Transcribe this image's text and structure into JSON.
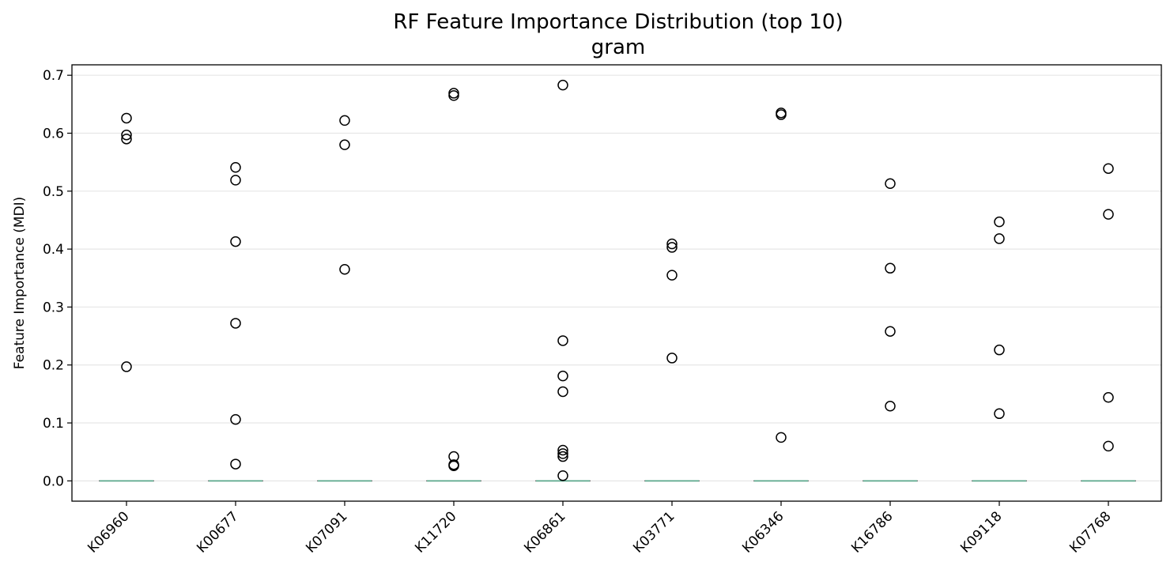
{
  "chart_data": {
    "type": "box",
    "title": "RF Feature Importance Distribution (top 10)",
    "subtitle": "gram",
    "xlabel": "",
    "ylabel": "Feature Importance (MDI)",
    "ylim": [
      -0.035,
      0.718
    ],
    "yticks": [
      0.0,
      0.1,
      0.2,
      0.3,
      0.4,
      0.5,
      0.6,
      0.7
    ],
    "ytick_labels": [
      "0.0",
      "0.1",
      "0.2",
      "0.3",
      "0.4",
      "0.5",
      "0.6",
      "0.7"
    ],
    "grid": "horizontal",
    "median_color": "#5aa78b",
    "categories": [
      "K06960",
      "K00677",
      "K07091",
      "K11720",
      "K06861",
      "K03771",
      "K06346",
      "K16786",
      "K09118",
      "K07768"
    ],
    "boxes": [
      {
        "category": "K06960",
        "q1": 0,
        "median": 0,
        "q3": 0,
        "whisker_low": 0,
        "whisker_high": 0,
        "outliers": [
          0.626,
          0.597,
          0.59,
          0.197
        ]
      },
      {
        "category": "K00677",
        "q1": 0,
        "median": 0,
        "q3": 0,
        "whisker_low": 0,
        "whisker_high": 0,
        "outliers": [
          0.541,
          0.519,
          0.413,
          0.272,
          0.106,
          0.029
        ]
      },
      {
        "category": "K07091",
        "q1": 0,
        "median": 0,
        "q3": 0,
        "whisker_low": 0,
        "whisker_high": 0,
        "outliers": [
          0.622,
          0.58,
          0.365
        ]
      },
      {
        "category": "K11720",
        "q1": 0,
        "median": 0,
        "q3": 0,
        "whisker_low": 0,
        "whisker_high": 0,
        "outliers": [
          0.669,
          0.665,
          0.042,
          0.028,
          0.026
        ]
      },
      {
        "category": "K06861",
        "q1": 0,
        "median": 0,
        "q3": 0,
        "whisker_low": 0,
        "whisker_high": 0,
        "outliers": [
          0.683,
          0.242,
          0.181,
          0.154,
          0.053,
          0.047,
          0.042,
          0.009
        ]
      },
      {
        "category": "K03771",
        "q1": 0,
        "median": 0,
        "q3": 0,
        "whisker_low": 0,
        "whisker_high": 0,
        "outliers": [
          0.409,
          0.403,
          0.355,
          0.212
        ]
      },
      {
        "category": "K06346",
        "q1": 0,
        "median": 0,
        "q3": 0,
        "whisker_low": 0,
        "whisker_high": 0,
        "outliers": [
          0.635,
          0.632,
          0.075
        ]
      },
      {
        "category": "K16786",
        "q1": 0,
        "median": 0,
        "q3": 0,
        "whisker_low": 0,
        "whisker_high": 0,
        "outliers": [
          0.513,
          0.367,
          0.258,
          0.129
        ]
      },
      {
        "category": "K09118",
        "q1": 0,
        "median": 0,
        "q3": 0,
        "whisker_low": 0,
        "whisker_high": 0,
        "outliers": [
          0.447,
          0.418,
          0.226,
          0.116
        ]
      },
      {
        "category": "K07768",
        "q1": 0,
        "median": 0,
        "q3": 0,
        "whisker_low": 0,
        "whisker_high": 0,
        "outliers": [
          0.539,
          0.46,
          0.144,
          0.06
        ]
      }
    ]
  }
}
